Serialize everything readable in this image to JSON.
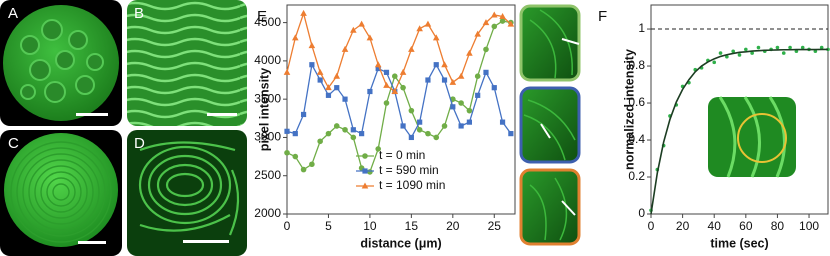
{
  "panel_labels": [
    "A",
    "B",
    "C",
    "D",
    "E",
    "F"
  ],
  "chart_data": [
    {
      "type": "line",
      "xlabel": "distance (μm)",
      "ylabel": "pixel intensity",
      "x": [
        0,
        1,
        2,
        3,
        4,
        5,
        6,
        7,
        8,
        9,
        10,
        11,
        12,
        13,
        14,
        15,
        16,
        17,
        18,
        19,
        20,
        21,
        22,
        23,
        24,
        25,
        26,
        27
      ],
      "series": [
        {
          "name": "t = 0 min",
          "color": "#70ad47",
          "marker": "circle",
          "values": [
            2800,
            2750,
            2580,
            2650,
            2950,
            3050,
            3150,
            3100,
            3000,
            2600,
            2550,
            2850,
            3450,
            3800,
            3650,
            3350,
            3100,
            3050,
            3000,
            3150,
            3500,
            3450,
            3350,
            3800,
            4150,
            4450,
            4520,
            4500
          ]
        },
        {
          "name": "t = 590 min",
          "color": "#4472c4",
          "marker": "square",
          "values": [
            3080,
            3050,
            3300,
            3950,
            3750,
            3550,
            3650,
            3500,
            3100,
            3050,
            3600,
            3900,
            3850,
            3600,
            3150,
            3000,
            3200,
            3750,
            3950,
            3750,
            3400,
            3150,
            3200,
            3550,
            3850,
            3650,
            3200,
            3050
          ]
        },
        {
          "name": "t = 1090 min",
          "color": "#ed7d31",
          "marker": "triangle",
          "values": [
            3850,
            4300,
            4620,
            4200,
            3850,
            3650,
            3800,
            4150,
            4400,
            4480,
            4300,
            3950,
            3680,
            3600,
            3850,
            4150,
            4420,
            4480,
            4300,
            3950,
            3720,
            3800,
            4100,
            4350,
            4500,
            4600,
            4580,
            4480
          ]
        }
      ],
      "xlim": [
        0,
        27.5
      ],
      "xticks": [
        0,
        5,
        10,
        15,
        20,
        25
      ],
      "ylim": [
        2000,
        4730
      ],
      "yticks": [
        2000,
        2500,
        3000,
        3500,
        4000,
        4500
      ],
      "legend": "lower center"
    },
    {
      "type": "scatter",
      "xlabel": "time (sec)",
      "ylabel": "normalized intensity",
      "x": [
        0,
        4,
        8,
        12,
        16,
        20,
        24,
        28,
        32,
        36,
        40,
        44,
        48,
        52,
        56,
        60,
        64,
        68,
        72,
        76,
        80,
        84,
        88,
        92,
        96,
        100,
        104,
        108,
        112
      ],
      "series": [
        {
          "color": "#2fb04a",
          "style": "markers",
          "values": [
            0.02,
            0.24,
            0.37,
            0.53,
            0.59,
            0.69,
            0.71,
            0.78,
            0.79,
            0.83,
            0.82,
            0.87,
            0.85,
            0.88,
            0.86,
            0.89,
            0.87,
            0.9,
            0.88,
            0.89,
            0.9,
            0.87,
            0.9,
            0.88,
            0.9,
            0.89,
            0.88,
            0.9,
            0.89
          ]
        },
        {
          "color": "#1c3d22",
          "style": "line",
          "values": [
            0,
            0.222,
            0.389,
            0.512,
            0.605,
            0.674,
            0.726,
            0.769,
            0.8,
            0.822,
            0.839,
            0.852,
            0.861,
            0.868,
            0.874,
            0.877,
            0.881,
            0.883,
            0.885,
            0.886,
            0.887,
            0.888,
            0.888,
            0.889,
            0.889,
            0.889,
            0.889,
            0.89,
            0.89
          ]
        }
      ],
      "xlim": [
        0,
        112
      ],
      "xticks": [
        0,
        20,
        40,
        60,
        80,
        100
      ],
      "ylim": [
        0,
        1.13
      ],
      "yticks": [
        0,
        0.2,
        0.4,
        0.6,
        0.8,
        1
      ],
      "reference_line": 1
    }
  ]
}
